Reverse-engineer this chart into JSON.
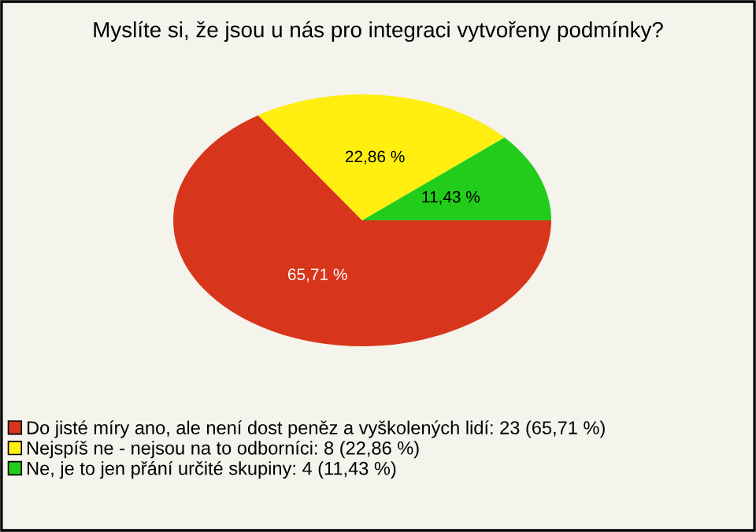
{
  "chart_data": {
    "type": "pie",
    "title": "Myslíte si, že jsou u nás pro integraci vytvořeny podmínky?",
    "categories": [
      "Do jisté míry ano, ale není dost peněz a vyškolených lidí: 23 (65,71 %)",
      "Nejspíš ne - nejsou na to odborníci: 8 (22,86 %)",
      "Ne, je to jen přání určité skupiny: 4 (11,43 %)"
    ],
    "values": [
      65.71,
      22.86,
      11.43
    ],
    "colors": [
      "#d8361c",
      "#ffee10",
      "#22cc1a"
    ],
    "value_labels": [
      "65,71 %",
      "22,86 %",
      "11,43 %"
    ],
    "legend": "bottom left"
  }
}
